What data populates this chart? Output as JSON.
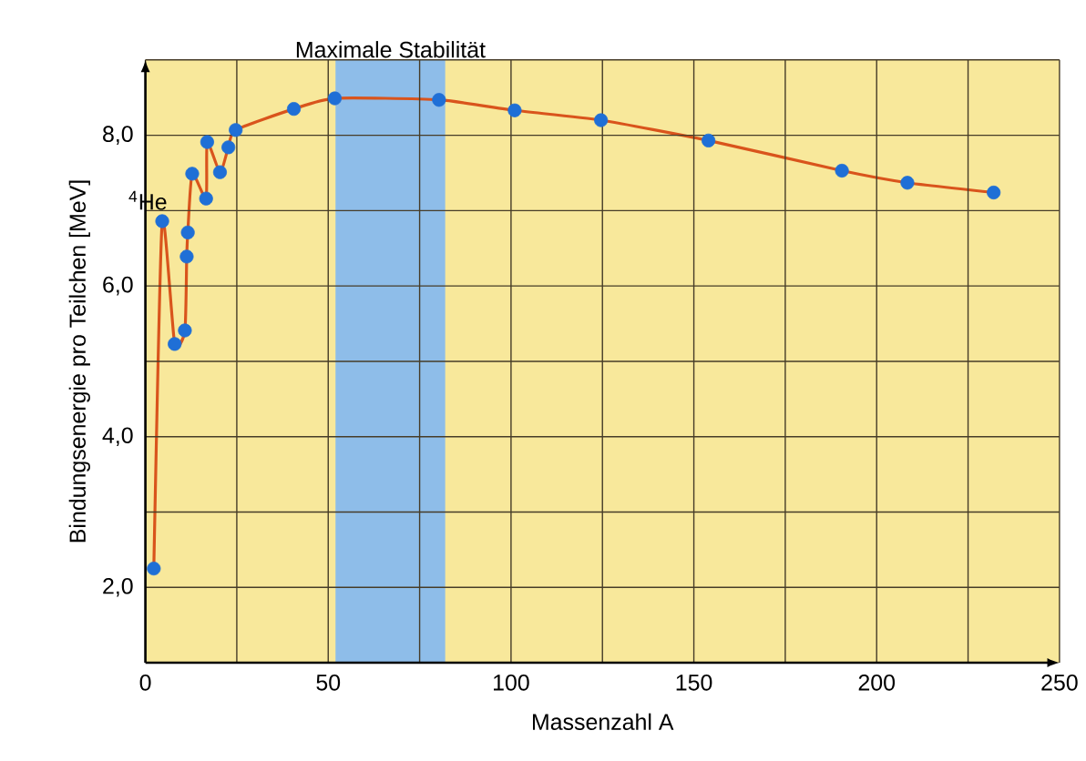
{
  "chart_data": {
    "type": "line",
    "xlabel": "Massenzahl A",
    "ylabel": "Bindungsenergie pro Teilchen [MeV]",
    "x": [
      2.3,
      4.6,
      8.0,
      10.8,
      11.3,
      11.6,
      12.8,
      16.6,
      16.9,
      20.4,
      22.7,
      24.7,
      40.6,
      51.8,
      80.3,
      101,
      124.6,
      154,
      190.5,
      208.4,
      232
    ],
    "series": [
      {
        "color": "#d9541c",
        "colors": [
          "#1f6fd6",
          "#1f6fd6",
          "#1f6fd6",
          "#1f6fd6",
          "#1f6fd6",
          "#1f6fd6",
          "#1f6fd6",
          "#1f6fd6",
          "#1f6fd6",
          "#1f6fd6",
          "#1f6fd6",
          "#1f6fd6",
          "#1f6fd6",
          "#1f6fd6",
          "#1f6fd6",
          "#1f6fd6",
          "#1f6fd6",
          "#1f6fd6",
          "#1f6fd6",
          "#1f6fd6",
          "#1f6fd6"
        ],
        "values": [
          2.25,
          6.86,
          5.23,
          5.41,
          6.39,
          6.71,
          7.49,
          7.16,
          7.91,
          7.51,
          7.84,
          8.07,
          8.35,
          8.49,
          8.47,
          8.33,
          8.2,
          7.93,
          7.53,
          7.37,
          7.24
        ]
      }
    ],
    "xlim": [
      0,
      250
    ],
    "ylim": [
      1,
      9
    ],
    "xticks": [
      0,
      {
        "value": 25,
        "label": null
      },
      50,
      {
        "value": 75,
        "label": null
      },
      100,
      {
        "value": 125,
        "label": null
      },
      150,
      {
        "value": 175,
        "label": null
      },
      200,
      {
        "value": 225,
        "label": null
      },
      250
    ],
    "yticks": [
      {
        "value": 2,
        "label": "2,0"
      },
      {
        "value": 3,
        "label": null
      },
      {
        "value": 4,
        "label": "4,0"
      },
      {
        "value": 5,
        "label": null
      },
      {
        "value": 6,
        "label": "6,0"
      },
      {
        "value": 7,
        "label": null
      },
      {
        "value": 8,
        "label": "8,0"
      },
      {
        "value": 9,
        "label": null
      }
    ],
    "bands": [
      {
        "axis": "x",
        "from": 52,
        "to": 82,
        "label": "Maximale Stabilität",
        "color": "#8ebde9"
      }
    ],
    "annotations": [
      {
        "text": "$^{4}$He",
        "x": 4.6,
        "y": 6.86
      }
    ],
    "grid": true,
    "marker": "circle"
  }
}
